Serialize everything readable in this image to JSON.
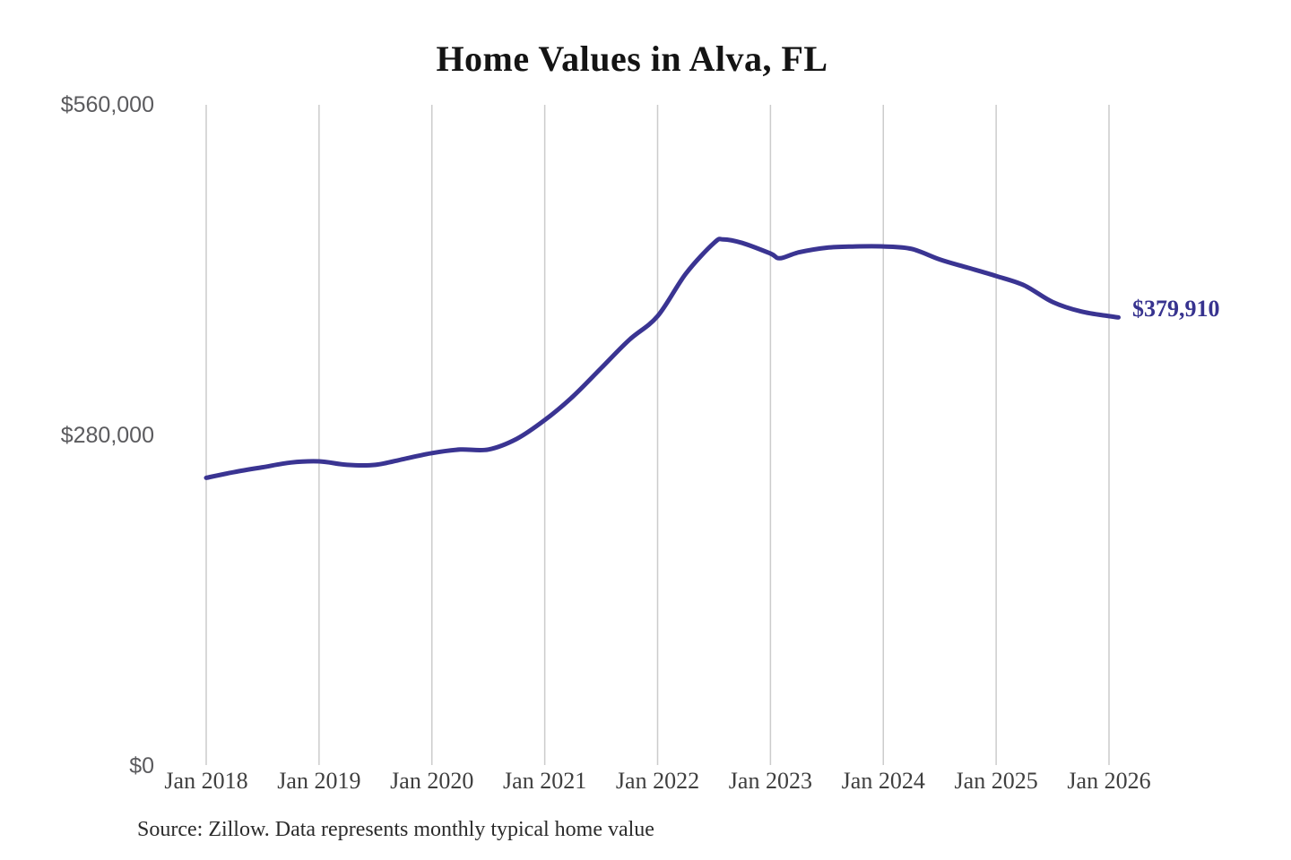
{
  "chart_data": {
    "type": "line",
    "title": "Home Values in Alva, FL",
    "xlabel": "",
    "ylabel": "",
    "ylim": [
      0,
      560000
    ],
    "grid": "vertical",
    "legend": "none",
    "line_color": "#3a3492",
    "end_label_color": "#37338f",
    "grid_color": "#cccccc",
    "y_tick_labels": [
      "$0",
      "$280,000",
      "$560,000"
    ],
    "y_tick_values": [
      0,
      280000,
      560000
    ],
    "x_tick_labels": [
      "Jan 2018",
      "Jan 2019",
      "Jan 2020",
      "Jan 2021",
      "Jan 2022",
      "Jan 2023",
      "Jan 2024",
      "Jan 2025",
      "Jan 2026"
    ],
    "x": [
      "2018-01",
      "2018-04",
      "2018-07",
      "2018-10",
      "2019-01",
      "2019-04",
      "2019-07",
      "2019-10",
      "2020-01",
      "2020-04",
      "2020-07",
      "2020-10",
      "2021-01",
      "2021-04",
      "2021-07",
      "2021-10",
      "2022-01",
      "2022-04",
      "2022-07",
      "2022-08",
      "2022-10",
      "2023-01",
      "2023-02",
      "2023-04",
      "2023-07",
      "2023-10",
      "2024-01",
      "2024-04",
      "2024-07",
      "2024-10",
      "2025-01",
      "2025-04",
      "2025-07",
      "2025-10",
      "2026-01",
      "2026-02"
    ],
    "values": [
      244000,
      249000,
      253000,
      257000,
      258000,
      255000,
      255000,
      260000,
      265000,
      268000,
      268000,
      277000,
      293000,
      313000,
      337000,
      361000,
      381000,
      417000,
      443000,
      446000,
      443000,
      434000,
      430000,
      435000,
      439000,
      440000,
      440000,
      438000,
      429000,
      422000,
      415000,
      407000,
      393000,
      385000,
      381000,
      379910
    ],
    "end_label": "$379,910",
    "source_note": "Source: Zillow. Data represents monthly typical home value"
  }
}
